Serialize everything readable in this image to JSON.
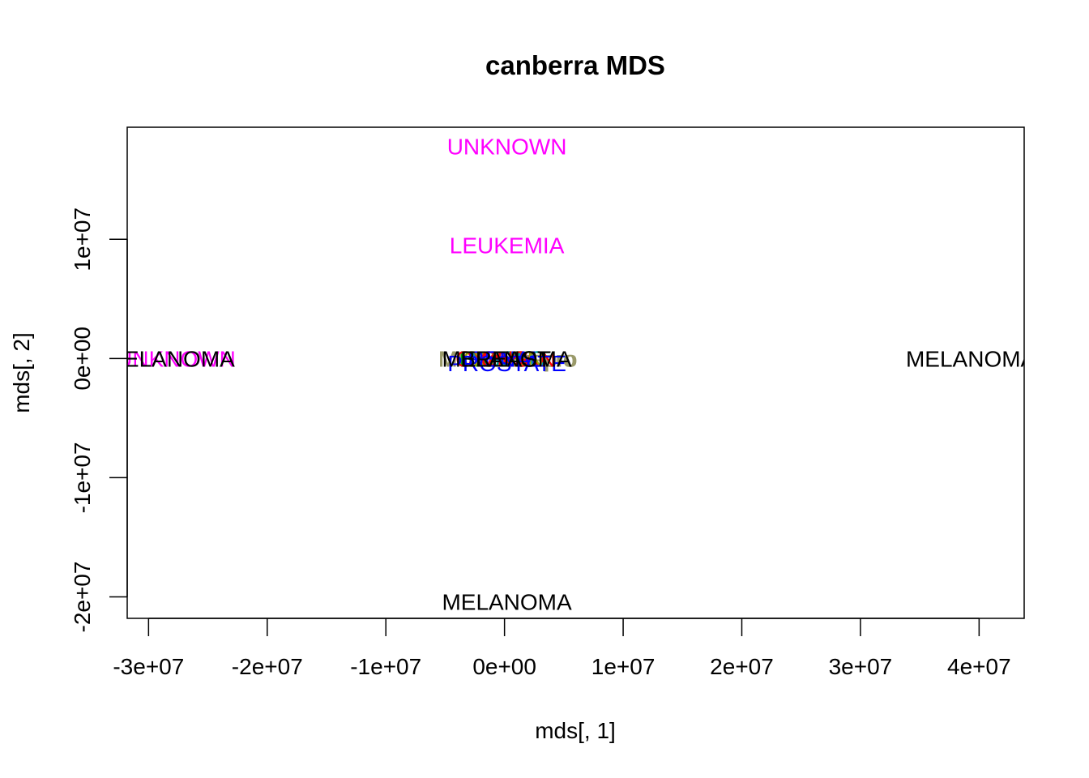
{
  "chart_data": {
    "type": "scatter",
    "title": "canberra MDS",
    "xlabel": "mds[, 1]",
    "ylabel": "mds[, 2]",
    "xlim": [
      -31800000,
      43800000
    ],
    "ylim": [
      -21800000,
      19400000
    ],
    "xticks": [
      -30000000,
      -20000000,
      -10000000,
      0,
      10000000,
      20000000,
      30000000,
      40000000
    ],
    "xtick_labels": [
      "-3e+07",
      "-2e+07",
      "-1e+07",
      "0e+00",
      "1e+07",
      "2e+07",
      "3e+07",
      "4e+07"
    ],
    "yticks": [
      -20000000,
      -10000000,
      0,
      10000000
    ],
    "ytick_labels": [
      "-2e+07",
      "-1e+07",
      "0e+00",
      "1e+07"
    ],
    "grid": false,
    "points": [
      {
        "label": "UNKNOWN",
        "x": 200000,
        "y": 17800000,
        "color": "#ff00ff"
      },
      {
        "label": "LEUKEMIA",
        "x": 200000,
        "y": 9500000,
        "color": "#ff00ff"
      },
      {
        "label": "UNKNOWN",
        "x": -27700000,
        "y": 0,
        "color": "#ff00ff"
      },
      {
        "label": "MELANOMA",
        "x": -28200000,
        "y": 0,
        "color": "#000000"
      },
      {
        "label": "MELANOMA",
        "x": 39300000,
        "y": 0,
        "color": "#000000"
      },
      {
        "label": "MELANOMA",
        "x": 200000,
        "y": -20400000,
        "color": "#000000"
      },
      {
        "label": "MCF7D-repro",
        "x": 300000,
        "y": 0,
        "color": "#9a9a6a"
      },
      {
        "label": "MCF7A-repro",
        "x": 200000,
        "y": 0,
        "color": "#9a9a6a"
      },
      {
        "label": "BREAST",
        "x": 0,
        "y": 0,
        "color": "#00a000"
      },
      {
        "label": "OVARIAN",
        "x": 100000,
        "y": 0,
        "color": "#ff0000"
      },
      {
        "label": "NSCLC",
        "x": 200000,
        "y": 0,
        "color": "#00a0a0"
      },
      {
        "label": "COLON",
        "x": -100000,
        "y": 0,
        "color": "#a0a000"
      },
      {
        "label": "CNS",
        "x": 0,
        "y": 0,
        "color": "#ff0000"
      },
      {
        "label": "RENAL",
        "x": 100000,
        "y": 0,
        "color": "#0000ff"
      },
      {
        "label": "PROSTATE",
        "x": 200000,
        "y": -400000,
        "color": "#0000ff"
      },
      {
        "label": "MELANOMA",
        "x": 200000,
        "y": 0,
        "color": "#000000"
      },
      {
        "label": "BREAST",
        "x": 100000,
        "y": 0,
        "color": "#000000"
      }
    ]
  }
}
